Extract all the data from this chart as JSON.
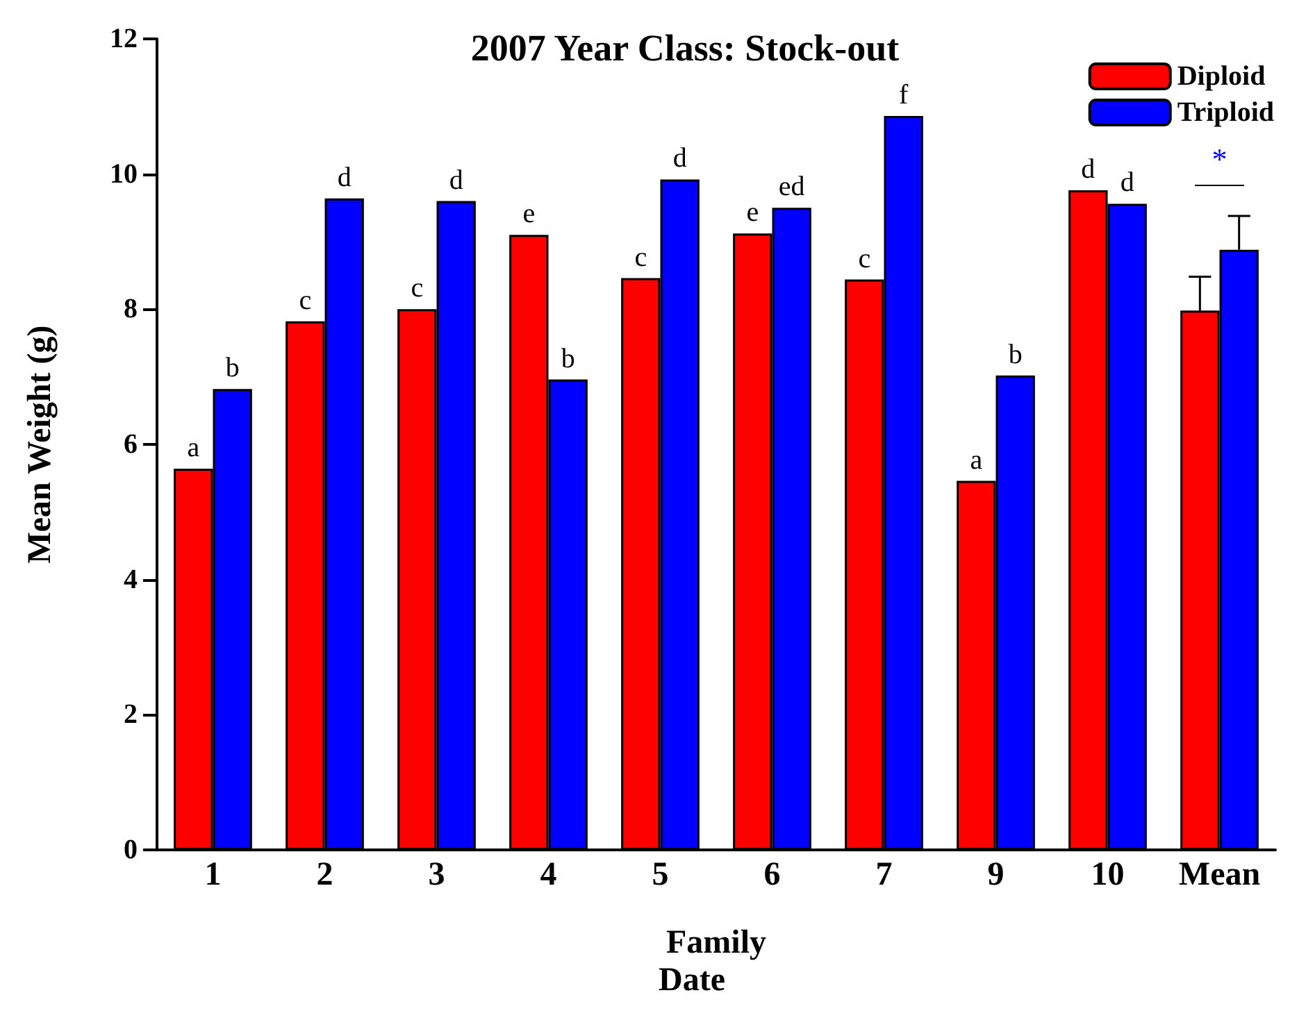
{
  "chart_data": {
    "type": "bar",
    "title": "2007 Year Class: Stock-out",
    "xlabel": "Family",
    "ylabel": "Mean Weight (g)",
    "categories": [
      "1",
      "2",
      "3",
      "4",
      "5",
      "6",
      "7",
      "9",
      "10",
      "Mean"
    ],
    "series": [
      {
        "name": "Diploid",
        "color": "#ff0000",
        "values": [
          5.64,
          7.82,
          8.0,
          9.1,
          8.46,
          9.12,
          8.44,
          5.46,
          9.76,
          7.98
        ],
        "errors": [
          null,
          null,
          null,
          null,
          null,
          null,
          null,
          null,
          null,
          0.5
        ],
        "value_labels": [
          "a",
          "c",
          "c",
          "e",
          "c",
          "e",
          "c",
          "a",
          "d",
          null
        ]
      },
      {
        "name": "Triploid",
        "color": "#0000ff",
        "values": [
          6.82,
          9.64,
          9.6,
          6.96,
          9.92,
          9.5,
          10.86,
          7.02,
          9.56,
          8.88
        ],
        "errors": [
          null,
          null,
          null,
          null,
          null,
          null,
          null,
          null,
          null,
          0.5
        ],
        "value_labels": [
          "b",
          "d",
          "d",
          "b",
          "d",
          "ed",
          "f",
          "b",
          "d",
          null
        ]
      }
    ],
    "ylim": [
      0,
      12
    ],
    "yticks": [
      0,
      2,
      4,
      6,
      8,
      10,
      12
    ],
    "grid": false,
    "legend": "top right",
    "annotations": [
      "*",
      "Date"
    ]
  }
}
